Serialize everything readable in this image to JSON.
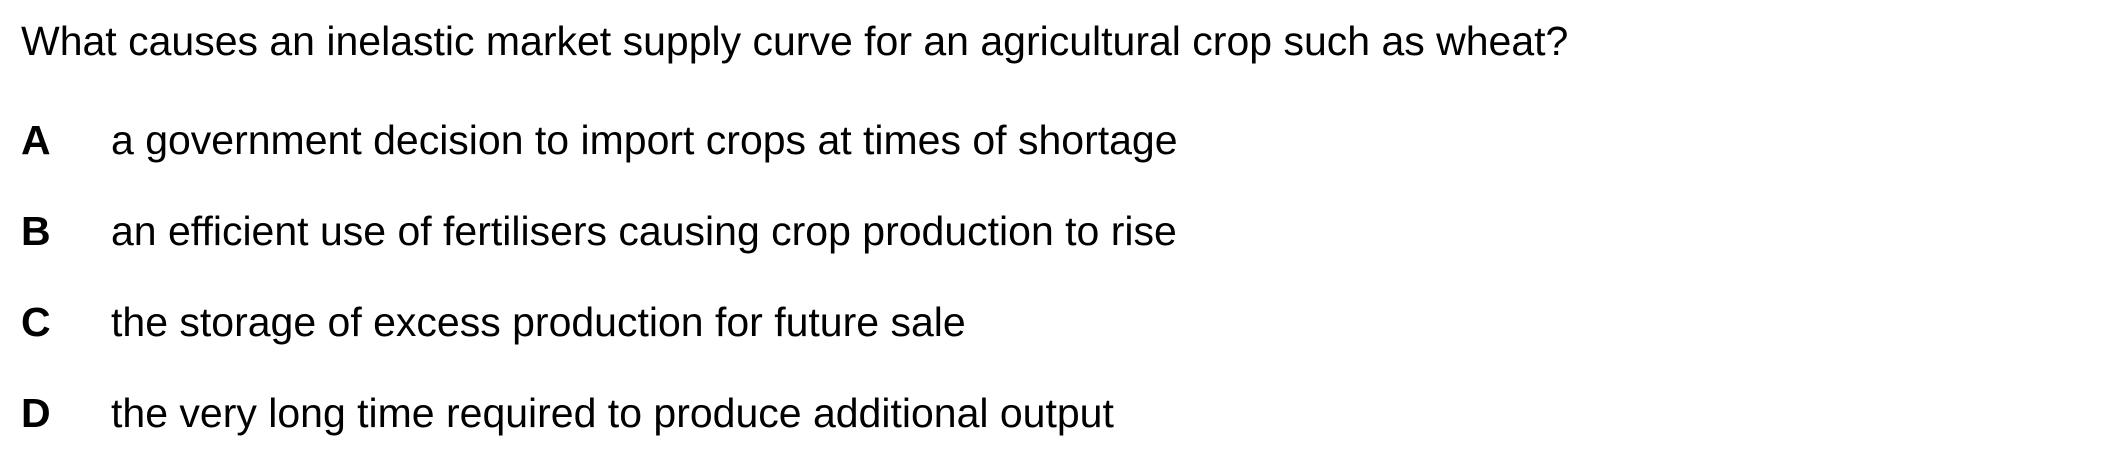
{
  "question": {
    "text": "What causes an inelastic market supply curve for an agricultural crop such as wheat?"
  },
  "options": [
    {
      "letter": "A",
      "text": "a government decision to import crops at times of shortage"
    },
    {
      "letter": "B",
      "text": "an efficient use of fertilisers causing crop production to rise"
    },
    {
      "letter": "C",
      "text": "the storage of excess production for future sale"
    },
    {
      "letter": "D",
      "text": "the very long time required to produce additional output"
    }
  ]
}
